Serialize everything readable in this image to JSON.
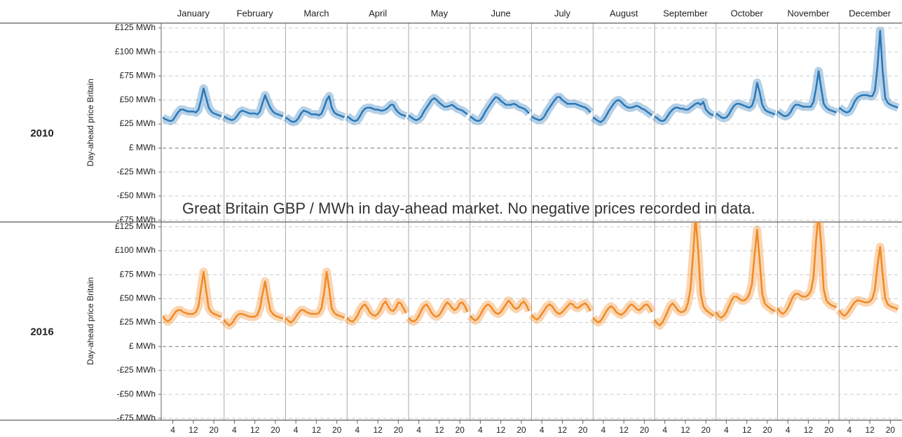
{
  "chart_data": {
    "type": "line",
    "annotation": "Great Britain GBP / MWh in day-ahead market. No negative prices recorded in data.",
    "y_label": "Day-ahead price Britain",
    "months": [
      "January",
      "February",
      "March",
      "April",
      "May",
      "June",
      "July",
      "August",
      "September",
      "October",
      "November",
      "December"
    ],
    "x": [
      0,
      1,
      2,
      3,
      4,
      5,
      6,
      7,
      8,
      9,
      10,
      11,
      12,
      13,
      14,
      15,
      16,
      17,
      18,
      19,
      20,
      21,
      22,
      23
    ],
    "xlim": [
      0,
      24
    ],
    "xticks": [
      4,
      12,
      20
    ],
    "ylim": [
      -77,
      130
    ],
    "yticks": [
      {
        "value": 125,
        "label": "£125 MWh"
      },
      {
        "value": 100,
        "label": "£100 MWh"
      },
      {
        "value": 75,
        "label": "£75 MWh"
      },
      {
        "value": 50,
        "label": "£50 MWh"
      },
      {
        "value": 25,
        "label": "£25 MWh"
      },
      {
        "value": 0,
        "label": "£ MWh"
      },
      {
        "value": -25,
        "label": "-£25 MWh"
      },
      {
        "value": -50,
        "label": "-£50 MWh"
      },
      {
        "value": -75,
        "label": "-£75 MWh"
      }
    ],
    "grid": true,
    "panels": [
      {
        "name": "2010",
        "color": "#2a78b8",
        "values": [
          [
            32,
            30,
            29,
            28,
            29,
            33,
            37,
            40,
            40,
            39,
            38,
            38,
            38,
            37,
            40,
            50,
            62,
            52,
            42,
            38,
            36,
            35,
            34,
            33
          ],
          [
            33,
            31,
            30,
            29,
            30,
            33,
            37,
            39,
            38,
            37,
            36,
            36,
            36,
            35,
            38,
            47,
            55,
            48,
            42,
            38,
            36,
            35,
            34,
            33
          ],
          [
            32,
            30,
            28,
            27,
            28,
            31,
            36,
            39,
            38,
            37,
            35,
            35,
            35,
            34,
            36,
            42,
            50,
            54,
            42,
            37,
            35,
            34,
            33,
            32
          ],
          [
            33,
            31,
            29,
            28,
            29,
            33,
            38,
            41,
            42,
            42,
            41,
            40,
            40,
            39,
            39,
            40,
            42,
            45,
            45,
            40,
            37,
            35,
            34,
            33
          ],
          [
            34,
            32,
            30,
            29,
            30,
            33,
            38,
            42,
            46,
            50,
            52,
            50,
            47,
            45,
            43,
            43,
            44,
            45,
            43,
            41,
            40,
            39,
            37,
            35
          ],
          [
            33,
            31,
            29,
            28,
            29,
            33,
            38,
            42,
            46,
            50,
            53,
            52,
            49,
            47,
            45,
            45,
            45,
            46,
            45,
            43,
            42,
            41,
            39,
            36
          ],
          [
            33,
            31,
            30,
            29,
            30,
            33,
            38,
            42,
            46,
            50,
            53,
            53,
            50,
            48,
            46,
            46,
            46,
            46,
            45,
            44,
            43,
            42,
            40,
            37
          ],
          [
            32,
            30,
            28,
            27,
            29,
            33,
            38,
            42,
            46,
            49,
            50,
            48,
            45,
            43,
            42,
            42,
            43,
            44,
            43,
            41,
            40,
            38,
            36,
            34
          ],
          [
            33,
            31,
            29,
            28,
            29,
            33,
            37,
            40,
            42,
            42,
            41,
            41,
            40,
            40,
            42,
            44,
            46,
            47,
            45,
            48,
            40,
            37,
            35,
            34
          ],
          [
            36,
            34,
            32,
            31,
            32,
            35,
            40,
            44,
            46,
            46,
            45,
            44,
            43,
            42,
            44,
            52,
            68,
            58,
            45,
            40,
            38,
            37,
            36,
            35
          ],
          [
            38,
            36,
            34,
            33,
            34,
            37,
            42,
            45,
            45,
            44,
            43,
            43,
            43,
            43,
            48,
            62,
            80,
            62,
            46,
            42,
            40,
            39,
            38,
            37
          ],
          [
            42,
            40,
            38,
            37,
            38,
            42,
            48,
            52,
            54,
            55,
            55,
            55,
            54,
            54,
            60,
            85,
            122,
            80,
            52,
            47,
            45,
            44,
            43,
            42
          ]
        ]
      },
      {
        "name": "2016",
        "color": "#f08a24",
        "values": [
          [
            32,
            28,
            26,
            28,
            32,
            36,
            38,
            38,
            36,
            35,
            34,
            34,
            34,
            36,
            42,
            60,
            78,
            58,
            40,
            36,
            34,
            33,
            32,
            31
          ],
          [
            28,
            24,
            22,
            24,
            28,
            32,
            34,
            34,
            33,
            32,
            31,
            31,
            31,
            33,
            40,
            55,
            68,
            52,
            38,
            34,
            32,
            31,
            30,
            29
          ],
          [
            30,
            27,
            25,
            27,
            31,
            35,
            38,
            38,
            36,
            35,
            34,
            34,
            34,
            35,
            40,
            55,
            78,
            60,
            40,
            35,
            33,
            32,
            31,
            30
          ],
          [
            30,
            27,
            26,
            28,
            32,
            38,
            42,
            44,
            40,
            35,
            33,
            32,
            34,
            38,
            44,
            47,
            42,
            38,
            37,
            40,
            46,
            45,
            40,
            35
          ],
          [
            30,
            27,
            26,
            28,
            32,
            38,
            42,
            44,
            40,
            35,
            32,
            31,
            33,
            37,
            42,
            46,
            44,
            40,
            38,
            40,
            45,
            46,
            42,
            36
          ],
          [
            32,
            29,
            27,
            29,
            33,
            38,
            42,
            44,
            42,
            38,
            35,
            34,
            36,
            40,
            44,
            48,
            45,
            41,
            39,
            41,
            45,
            47,
            43,
            37
          ],
          [
            33,
            30,
            28,
            30,
            34,
            38,
            42,
            44,
            42,
            38,
            35,
            34,
            36,
            39,
            42,
            45,
            44,
            41,
            40,
            42,
            44,
            45,
            42,
            37
          ],
          [
            30,
            27,
            25,
            27,
            31,
            36,
            40,
            42,
            40,
            36,
            34,
            33,
            35,
            38,
            42,
            44,
            42,
            39,
            38,
            40,
            43,
            44,
            41,
            36
          ],
          [
            28,
            24,
            22,
            25,
            30,
            36,
            42,
            45,
            42,
            38,
            36,
            36,
            38,
            45,
            60,
            95,
            135,
            100,
            55,
            42,
            38,
            36,
            34,
            32
          ],
          [
            36,
            32,
            30,
            32,
            36,
            42,
            48,
            52,
            52,
            50,
            48,
            48,
            50,
            55,
            65,
            95,
            122,
            90,
            55,
            45,
            42,
            40,
            38,
            37
          ],
          [
            40,
            36,
            34,
            36,
            40,
            46,
            52,
            55,
            55,
            53,
            52,
            52,
            54,
            58,
            72,
            110,
            140,
            105,
            60,
            48,
            45,
            43,
            42,
            41
          ],
          [
            38,
            34,
            32,
            34,
            38,
            42,
            46,
            48,
            48,
            47,
            46,
            46,
            47,
            50,
            60,
            85,
            104,
            75,
            50,
            44,
            42,
            41,
            40,
            39
          ]
        ]
      }
    ]
  }
}
